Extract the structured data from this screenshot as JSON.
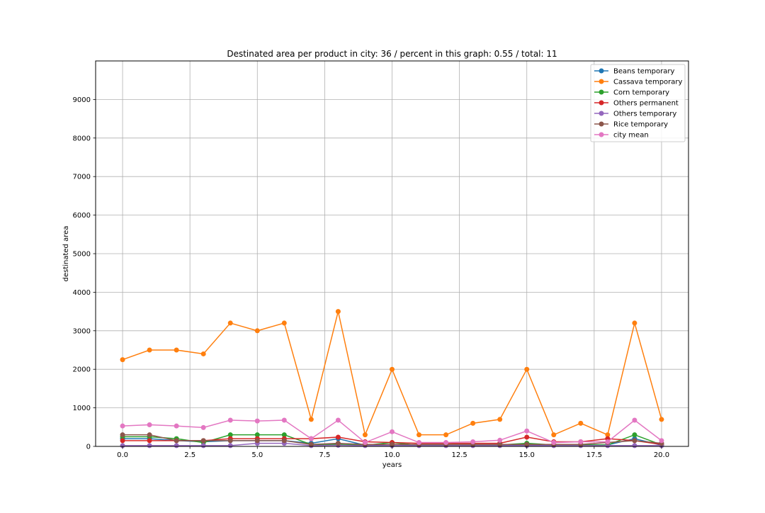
{
  "chart_data": {
    "type": "line",
    "title": "Destinated area per product in city: 36 / percent in this graph: 0.55 / total: 11",
    "xlabel": "years",
    "ylabel": "destinated area",
    "xlim": [
      -1,
      21
    ],
    "ylim": [
      0,
      10000
    ],
    "xticks": [
      0.0,
      2.5,
      5.0,
      7.5,
      10.0,
      12.5,
      15.0,
      17.5,
      20.0
    ],
    "xtick_labels": [
      "0.0",
      "2.5",
      "5.0",
      "7.5",
      "10.0",
      "12.5",
      "15.0",
      "17.5",
      "20.0"
    ],
    "yticks": [
      0,
      1000,
      2000,
      3000,
      4000,
      5000,
      6000,
      7000,
      8000,
      9000
    ],
    "ytick_labels": [
      "0",
      "1000",
      "2000",
      "3000",
      "4000",
      "5000",
      "6000",
      "7000",
      "8000",
      "9000"
    ],
    "grid": true,
    "legend_position": "top-right",
    "x": [
      0,
      1,
      2,
      3,
      4,
      5,
      6,
      7,
      8,
      9,
      10,
      11,
      12,
      13,
      14,
      15,
      16,
      17,
      18,
      19,
      20
    ],
    "series": [
      {
        "name": "Beans temporary",
        "color": "#1f77b4",
        "values": [
          200,
          200,
          150,
          120,
          150,
          150,
          150,
          80,
          200,
          30,
          50,
          30,
          30,
          40,
          40,
          40,
          40,
          40,
          40,
          200,
          30
        ]
      },
      {
        "name": "Cassava temporary",
        "color": "#ff7f0e",
        "values": [
          2250,
          2500,
          2500,
          2400,
          3200,
          3000,
          3200,
          700,
          3500,
          300,
          2000,
          300,
          300,
          600,
          700,
          2000,
          300,
          600,
          300,
          3200,
          700
        ]
      },
      {
        "name": "Corn temporary",
        "color": "#2ca02c",
        "values": [
          250,
          250,
          200,
          100,
          300,
          300,
          300,
          50,
          50,
          30,
          100,
          30,
          30,
          40,
          40,
          80,
          40,
          40,
          40,
          300,
          40
        ]
      },
      {
        "name": "Others permanent",
        "color": "#d62728",
        "values": [
          150,
          150,
          150,
          150,
          200,
          200,
          200,
          200,
          240,
          120,
          100,
          80,
          80,
          80,
          80,
          240,
          120,
          120,
          200,
          150,
          50
        ]
      },
      {
        "name": "Others temporary",
        "color": "#9467bd",
        "values": [
          20,
          20,
          20,
          20,
          20,
          80,
          80,
          20,
          30,
          20,
          20,
          20,
          20,
          20,
          20,
          20,
          20,
          20,
          20,
          20,
          20
        ]
      },
      {
        "name": "Rice temporary",
        "color": "#8c564b",
        "values": [
          300,
          300,
          150,
          150,
          150,
          150,
          150,
          50,
          80,
          50,
          50,
          50,
          50,
          50,
          50,
          50,
          50,
          50,
          100,
          150,
          80
        ]
      },
      {
        "name": "city mean",
        "color": "#e377c2",
        "values": [
          530,
          560,
          530,
          490,
          680,
          660,
          680,
          200,
          680,
          100,
          380,
          100,
          100,
          120,
          160,
          400,
          100,
          120,
          120,
          680,
          150
        ]
      }
    ]
  }
}
